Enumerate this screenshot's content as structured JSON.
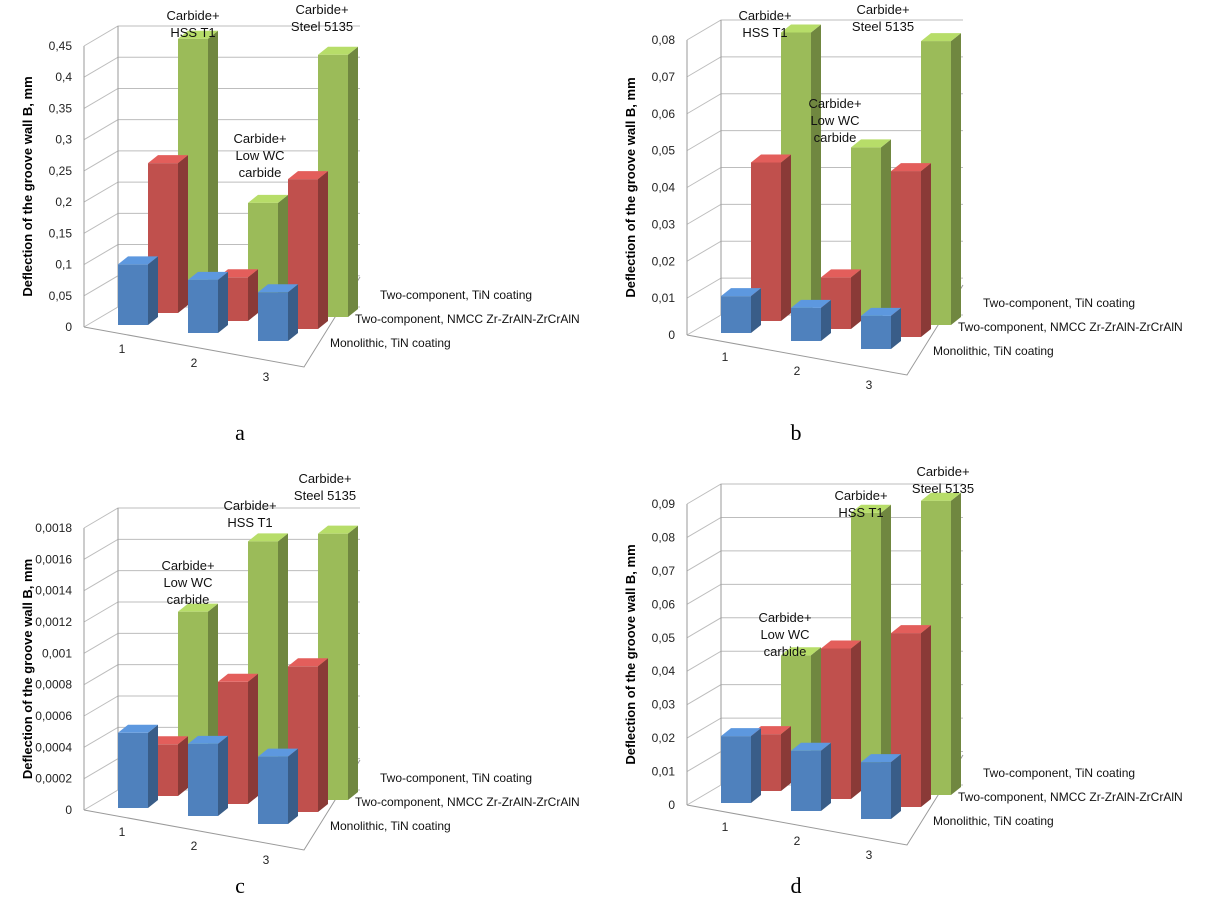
{
  "chart_data": [
    {
      "type": "bar",
      "panel_label": "a",
      "ylabel": "Deflection of the groove wall B, mm",
      "categories": [
        "1",
        "2",
        "3"
      ],
      "y_ticks": [
        "0",
        "0,05",
        "0,1",
        "0,15",
        "0,2",
        "0,25",
        "0,3",
        "0,35",
        "0,4",
        "0,45"
      ],
      "ylim": [
        0,
        0.45
      ],
      "series": [
        {
          "name": "Monolithic, TiN coating",
          "color": "#4f81bd",
          "values": [
            0.097,
            0.085,
            0.078
          ]
        },
        {
          "name": "Two-component, NMCC Zr-ZrAlN-ZrCrAlN",
          "color": "#c0504d",
          "values": [
            0.24,
            0.07,
            0.24
          ]
        },
        {
          "name": "Two-component, TiN coating",
          "color": "#9bbb59",
          "values": [
            0.42,
            0.17,
            0.42
          ]
        }
      ],
      "annotations": [
        {
          "lines": [
            "Carbide+",
            "HSS T1"
          ]
        },
        {
          "lines": [
            "Carbide+",
            "Steel 5135"
          ]
        },
        {
          "lines": [
            "Carbide+",
            "Low WC",
            "carbide"
          ]
        }
      ]
    },
    {
      "type": "bar",
      "panel_label": "b",
      "ylabel": "Deflection of the groove wall B, mm",
      "categories": [
        "1",
        "2",
        "3"
      ],
      "y_ticks": [
        "0",
        "0,01",
        "0,02",
        "0,03",
        "0,04",
        "0,05",
        "0,06",
        "0,07",
        "0,08"
      ],
      "ylim": [
        0,
        0.08
      ],
      "series": [
        {
          "name": "Monolithic, TiN coating",
          "color": "#4f81bd",
          "values": [
            0.01,
            0.009,
            0.009
          ]
        },
        {
          "name": "Two-component, NMCC Zr-ZrAlN-ZrCrAlN",
          "color": "#c0504d",
          "values": [
            0.043,
            0.014,
            0.045
          ]
        },
        {
          "name": "Two-component, TiN coating",
          "color": "#9bbb59",
          "values": [
            0.075,
            0.046,
            0.077
          ]
        }
      ],
      "annotations": [
        {
          "lines": [
            "Carbide+",
            "HSS T1"
          ]
        },
        {
          "lines": [
            "Carbide+",
            "Steel 5135"
          ]
        },
        {
          "lines": [
            "Carbide+",
            "Low WC",
            "carbide"
          ]
        }
      ]
    },
    {
      "type": "bar",
      "panel_label": "c",
      "ylabel": "Deflection of the groove wall B, mm",
      "categories": [
        "1",
        "2",
        "3"
      ],
      "y_ticks": [
        "0",
        "0,0002",
        "0,0004",
        "0,0006",
        "0,0008",
        "0,001",
        "0,0012",
        "0,0014",
        "0,0016",
        "0,0018"
      ],
      "ylim": [
        0,
        0.0018
      ],
      "series": [
        {
          "name": "Monolithic, TiN coating",
          "color": "#4f81bd",
          "values": [
            0.00048,
            0.00046,
            0.00043
          ]
        },
        {
          "name": "Two-component, NMCC Zr-ZrAlN-ZrCrAlN",
          "color": "#c0504d",
          "values": [
            0.00033,
            0.00078,
            0.00093
          ]
        },
        {
          "name": "Two-component, TiN coating",
          "color": "#9bbb59",
          "values": [
            0.0011,
            0.0016,
            0.0017
          ]
        }
      ],
      "annotations": [
        {
          "lines": [
            "Carbide+",
            "Low WC",
            "carbide"
          ]
        },
        {
          "lines": [
            "Carbide+",
            "HSS T1"
          ]
        },
        {
          "lines": [
            "Carbide+",
            "Steel 5135"
          ]
        }
      ]
    },
    {
      "type": "bar",
      "panel_label": "d",
      "ylabel": "Deflection of the groove wall B, mm",
      "categories": [
        "1",
        "2",
        "3"
      ],
      "y_ticks": [
        "0",
        "0,01",
        "0,02",
        "0,03",
        "0,04",
        "0,05",
        "0,06",
        "0,07",
        "0,08",
        "0,09"
      ],
      "ylim": [
        0,
        0.09
      ],
      "series": [
        {
          "name": "Monolithic, TiN coating",
          "color": "#4f81bd",
          "values": [
            0.02,
            0.018,
            0.017
          ]
        },
        {
          "name": "Two-component, NMCC Zr-ZrAlN-ZrCrAlN",
          "color": "#c0504d",
          "values": [
            0.017,
            0.045,
            0.052
          ]
        },
        {
          "name": "Two-component, TiN coating",
          "color": "#9bbb59",
          "values": [
            0.037,
            0.082,
            0.088
          ]
        }
      ],
      "annotations": [
        {
          "lines": [
            "Carbide+",
            "Low WC",
            "carbide"
          ]
        },
        {
          "lines": [
            "Carbide+",
            "HSS T1"
          ]
        },
        {
          "lines": [
            "Carbide+",
            "Steel 5135"
          ]
        }
      ]
    }
  ]
}
